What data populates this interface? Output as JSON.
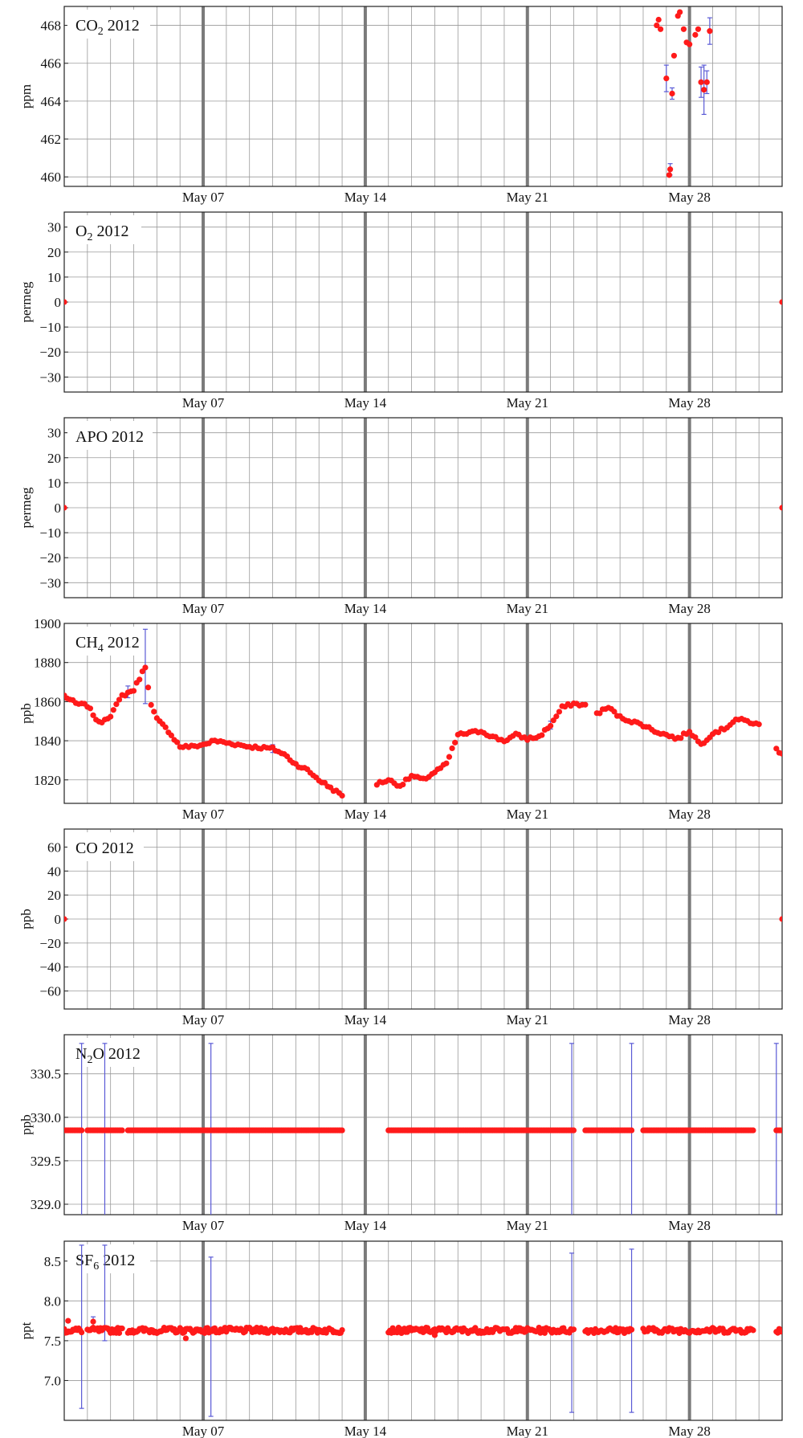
{
  "colors": {
    "point": "#ff1a1a",
    "errorbar": "#5a5ad6",
    "grid": "#9a9a9a",
    "major_grid": "#7a7a7a",
    "frame": "#222222"
  },
  "x_ticks": [
    "May 07",
    "May 14",
    "May 21",
    "May 28"
  ],
  "chart_data": [
    {
      "type": "scatter",
      "title": "CO₂ 2012",
      "title_parts": [
        "CO",
        "2",
        " 2012"
      ],
      "ylabel": "ppm",
      "ylim": [
        459.5,
        469.0
      ],
      "yticks": [
        460,
        462,
        464,
        466,
        468
      ],
      "xlim": [
        "2012-05-01",
        "2012-06-01"
      ],
      "x_tick_dates": [
        "2012-05-07",
        "2012-05-14",
        "2012-05-21",
        "2012-05-28"
      ],
      "grid": true,
      "points": [
        {
          "x": "2012-05-26T14:00",
          "y": 468.0
        },
        {
          "x": "2012-05-26T16:00",
          "y": 468.3
        },
        {
          "x": "2012-05-26T18:00",
          "y": 467.8
        },
        {
          "x": "2012-05-27T00:00",
          "y": 465.2,
          "err": 0.7
        },
        {
          "x": "2012-05-27T03:00",
          "y": 460.1
        },
        {
          "x": "2012-05-27T04:00",
          "y": 460.4,
          "err": 0.3
        },
        {
          "x": "2012-05-27T06:00",
          "y": 464.4,
          "err": 0.3
        },
        {
          "x": "2012-05-27T08:00",
          "y": 466.4
        },
        {
          "x": "2012-05-27T12:00",
          "y": 468.5
        },
        {
          "x": "2012-05-27T14:00",
          "y": 468.7
        },
        {
          "x": "2012-05-27T18:00",
          "y": 467.8
        },
        {
          "x": "2012-05-27T21:00",
          "y": 467.1
        },
        {
          "x": "2012-05-28T00:00",
          "y": 467.0
        },
        {
          "x": "2012-05-28T06:00",
          "y": 467.5
        },
        {
          "x": "2012-05-28T09:00",
          "y": 467.8
        },
        {
          "x": "2012-05-28T12:00",
          "y": 465.0,
          "err": 0.8
        },
        {
          "x": "2012-05-28T15:00",
          "y": 464.6,
          "err": 1.3
        },
        {
          "x": "2012-05-28T18:00",
          "y": 465.0,
          "err": 0.6
        },
        {
          "x": "2012-05-28T21:00",
          "y": 467.7,
          "err": 0.7
        }
      ]
    },
    {
      "type": "scatter",
      "title": "O₂ 2012",
      "title_parts": [
        "O",
        "2",
        " 2012"
      ],
      "ylabel": "permeg",
      "ylim": [
        -36,
        36
      ],
      "yticks": [
        -30,
        -20,
        -10,
        0,
        10,
        20,
        30
      ],
      "xlim": [
        "2012-05-01",
        "2012-06-01"
      ],
      "x_tick_dates": [
        "2012-05-07",
        "2012-05-14",
        "2012-05-21",
        "2012-05-28"
      ],
      "grid": true,
      "points": [
        {
          "x": "2012-05-01T00:00",
          "y": 0
        },
        {
          "x": "2012-06-01T00:00",
          "y": 0
        }
      ]
    },
    {
      "type": "scatter",
      "title": "APO 2012",
      "title_parts": [
        "APO",
        "",
        " 2012"
      ],
      "ylabel": "permeg",
      "ylim": [
        -36,
        36
      ],
      "yticks": [
        -30,
        -20,
        -10,
        0,
        10,
        20,
        30
      ],
      "xlim": [
        "2012-05-01",
        "2012-06-01"
      ],
      "x_tick_dates": [
        "2012-05-07",
        "2012-05-14",
        "2012-05-21",
        "2012-05-28"
      ],
      "grid": true,
      "points": [
        {
          "x": "2012-05-01T00:00",
          "y": 0
        },
        {
          "x": "2012-06-01T00:00",
          "y": 0
        }
      ]
    },
    {
      "type": "scatter",
      "title": "CH₄ 2012",
      "title_parts": [
        "CH",
        "4",
        " 2012"
      ],
      "ylabel": "ppb",
      "ylim": [
        1808,
        1900
      ],
      "yticks": [
        1820,
        1840,
        1860,
        1880,
        1900
      ],
      "xlim": [
        "2012-05-01",
        "2012-06-01"
      ],
      "x_tick_dates": [
        "2012-05-07",
        "2012-05-14",
        "2012-05-21",
        "2012-05-28"
      ],
      "grid": true,
      "series_keypoints": [
        [
          "2012-05-01T00:00",
          1863
        ],
        [
          "2012-05-01T12:00",
          1859
        ],
        [
          "2012-05-02T00:00",
          1858
        ],
        [
          "2012-05-02T12:00",
          1849
        ],
        [
          "2012-05-03T00:00",
          1853
        ],
        [
          "2012-05-03T12:00",
          1863
        ],
        [
          "2012-05-04T00:00",
          1866
        ],
        [
          "2012-05-04T12:00",
          1878
        ],
        [
          "2012-05-04T18:00",
          1858
        ],
        [
          "2012-05-05T00:00",
          1851
        ],
        [
          "2012-05-05T12:00",
          1845
        ],
        [
          "2012-05-06T00:00",
          1837
        ],
        [
          "2012-05-06T12:00",
          1837
        ],
        [
          "2012-05-07T00:00",
          1838
        ],
        [
          "2012-05-07T12:00",
          1840
        ],
        [
          "2012-05-08T00:00",
          1839
        ],
        [
          "2012-05-09T00:00",
          1837
        ],
        [
          "2012-05-10T00:00",
          1836
        ],
        [
          "2012-05-10T12:00",
          1833
        ],
        [
          "2012-05-11T00:00",
          1828
        ],
        [
          "2012-05-11T12:00",
          1825
        ],
        [
          "2012-05-12T00:00",
          1820
        ],
        [
          "2012-05-12T12:00",
          1816
        ],
        [
          "2012-05-13T00:00",
          1812
        ],
        [
          "2012-05-15T00:00",
          1820
        ],
        [
          "2012-05-15T12:00",
          1817
        ],
        [
          "2012-05-16T00:00",
          1822
        ],
        [
          "2012-05-16T12:00",
          1820
        ],
        [
          "2012-05-17T00:00",
          1824
        ],
        [
          "2012-05-17T12:00",
          1828
        ],
        [
          "2012-05-18T00:00",
          1843
        ],
        [
          "2012-05-18T12:00",
          1844
        ],
        [
          "2012-05-19T00:00",
          1845
        ],
        [
          "2012-05-19T12:00",
          1842
        ],
        [
          "2012-05-20T00:00",
          1840
        ],
        [
          "2012-05-20T12:00",
          1843
        ],
        [
          "2012-05-21T00:00",
          1841
        ],
        [
          "2012-05-21T12:00",
          1842
        ],
        [
          "2012-05-22T00:00",
          1848
        ],
        [
          "2012-05-22T12:00",
          1857
        ],
        [
          "2012-05-23T00:00",
          1859
        ],
        [
          "2012-05-23T12:00",
          1858
        ],
        [
          "2012-05-24T00:00",
          1854
        ],
        [
          "2012-05-24T12:00",
          1857
        ],
        [
          "2012-05-25T00:00",
          1852
        ],
        [
          "2012-05-25T12:00",
          1850
        ],
        [
          "2012-05-26T00:00",
          1848
        ],
        [
          "2012-05-26T12:00",
          1845
        ],
        [
          "2012-05-27T00:00",
          1843
        ],
        [
          "2012-05-27T12:00",
          1841
        ],
        [
          "2012-05-28T00:00",
          1845
        ],
        [
          "2012-05-28T12:00",
          1838
        ],
        [
          "2012-05-29T00:00",
          1844
        ],
        [
          "2012-05-29T12:00",
          1846
        ],
        [
          "2012-05-30T00:00",
          1851
        ],
        [
          "2012-05-30T12:00",
          1850
        ],
        [
          "2012-05-31T00:00",
          1848
        ],
        [
          "2012-05-31T18:00",
          1836
        ],
        [
          "2012-06-01T00:00",
          1833
        ]
      ],
      "gaps": [
        [
          "2012-05-13T00:00",
          "2012-05-14T12:00"
        ],
        [
          "2012-05-23T12:00",
          "2012-05-23T23:00"
        ],
        [
          "2012-05-31T00:00",
          "2012-05-31T16:00"
        ]
      ],
      "errorbars": [
        {
          "x": "2012-05-04T12:00",
          "y": 1878,
          "err": 19
        },
        {
          "x": "2012-05-03T18:00",
          "y": 1865,
          "err": 3
        },
        {
          "x": "2012-05-22T00:00",
          "y": 1848,
          "err": 2
        },
        {
          "x": "2012-05-10T00:00",
          "y": 1836,
          "err": 2
        }
      ]
    },
    {
      "type": "scatter",
      "title": "CO 2012",
      "title_parts": [
        "CO",
        "",
        " 2012"
      ],
      "ylabel": "ppb",
      "ylim": [
        -75,
        75
      ],
      "yticks": [
        -60,
        -40,
        -20,
        0,
        20,
        40,
        60
      ],
      "xlim": [
        "2012-05-01",
        "2012-06-01"
      ],
      "x_tick_dates": [
        "2012-05-07",
        "2012-05-14",
        "2012-05-21",
        "2012-05-28"
      ],
      "grid": true,
      "points": [
        {
          "x": "2012-05-01T00:00",
          "y": 0
        },
        {
          "x": "2012-06-01T00:00",
          "y": 0
        }
      ]
    },
    {
      "type": "scatter",
      "title": "N₂O 2012",
      "title_parts": [
        "N",
        "2",
        "O 2012"
      ],
      "ylabel": "ppb",
      "ylim": [
        328.88,
        330.95
      ],
      "yticks": [
        329.0,
        329.5,
        330.0,
        330.5
      ],
      "ytick_labels": [
        "329.0",
        "329.5",
        "330.0",
        "330.5"
      ],
      "xlim": [
        "2012-05-01",
        "2012-06-01"
      ],
      "x_tick_dates": [
        "2012-05-07",
        "2012-05-14",
        "2012-05-21",
        "2012-05-28"
      ],
      "grid": true,
      "constant_value": 329.85,
      "segments": [
        [
          "2012-05-01T00:00",
          "2012-05-01T18:00"
        ],
        [
          "2012-05-02T00:00",
          "2012-05-03T12:00"
        ],
        [
          "2012-05-03T18:00",
          "2012-05-13T00:00"
        ],
        [
          "2012-05-15T00:00",
          "2012-05-23T00:00"
        ],
        [
          "2012-05-23T12:00",
          "2012-05-25T12:00"
        ],
        [
          "2012-05-26T00:00",
          "2012-05-30T18:00"
        ],
        [
          "2012-05-31T18:00",
          "2012-06-01T00:00"
        ]
      ],
      "errorbars": [
        {
          "x": "2012-05-01T18:00",
          "lo": 328.87,
          "hi": 330.85
        },
        {
          "x": "2012-05-02T18:00",
          "lo": 328.87,
          "hi": 330.85
        },
        {
          "x": "2012-05-07T08:00",
          "lo": 328.87,
          "hi": 330.85
        },
        {
          "x": "2012-05-22T22:00",
          "lo": 328.87,
          "hi": 330.85
        },
        {
          "x": "2012-05-25T12:00",
          "lo": 328.87,
          "hi": 330.85
        },
        {
          "x": "2012-05-31T18:00",
          "lo": 328.87,
          "hi": 330.85
        }
      ]
    },
    {
      "type": "scatter",
      "title": "SF₆ 2012",
      "title_parts": [
        "SF",
        "6",
        " 2012"
      ],
      "ylabel": "ppt",
      "ylim": [
        6.5,
        8.75
      ],
      "yticks": [
        7.0,
        7.5,
        8.0,
        8.5
      ],
      "ytick_labels": [
        "7.0",
        "7.5",
        "8.0",
        "8.5"
      ],
      "xlim": [
        "2012-05-01",
        "2012-06-01"
      ],
      "x_tick_dates": [
        "2012-05-07",
        "2012-05-14",
        "2012-05-21",
        "2012-05-28"
      ],
      "grid": true,
      "base_value": 7.63,
      "segments": [
        [
          "2012-05-01T00:00",
          "2012-05-01T18:00"
        ],
        [
          "2012-05-02T00:00",
          "2012-05-03T12:00"
        ],
        [
          "2012-05-03T18:00",
          "2012-05-13T00:00"
        ],
        [
          "2012-05-15T00:00",
          "2012-05-23T00:00"
        ],
        [
          "2012-05-23T12:00",
          "2012-05-25T12:00"
        ],
        [
          "2012-05-26T00:00",
          "2012-05-30T18:00"
        ],
        [
          "2012-05-31T18:00",
          "2012-06-01T00:00"
        ]
      ],
      "outliers": [
        {
          "x": "2012-05-02T06:00",
          "y": 7.74
        },
        {
          "x": "2012-05-06T06:00",
          "y": 7.53
        },
        {
          "x": "2012-05-17T00:00",
          "y": 7.57
        },
        {
          "x": "2012-05-01T04:00",
          "y": 7.75
        }
      ],
      "errorbars": [
        {
          "x": "2012-05-01T18:00",
          "lo": 6.65,
          "hi": 8.7
        },
        {
          "x": "2012-05-02T18:00",
          "lo": 7.5,
          "hi": 8.7
        },
        {
          "x": "2012-05-07T08:00",
          "lo": 6.55,
          "hi": 8.55
        },
        {
          "x": "2012-05-22T22:00",
          "lo": 6.6,
          "hi": 8.6
        },
        {
          "x": "2012-05-25T12:00",
          "lo": 6.6,
          "hi": 8.65
        },
        {
          "x": "2012-05-02T06:00",
          "lo": 7.68,
          "hi": 7.8
        }
      ]
    }
  ]
}
